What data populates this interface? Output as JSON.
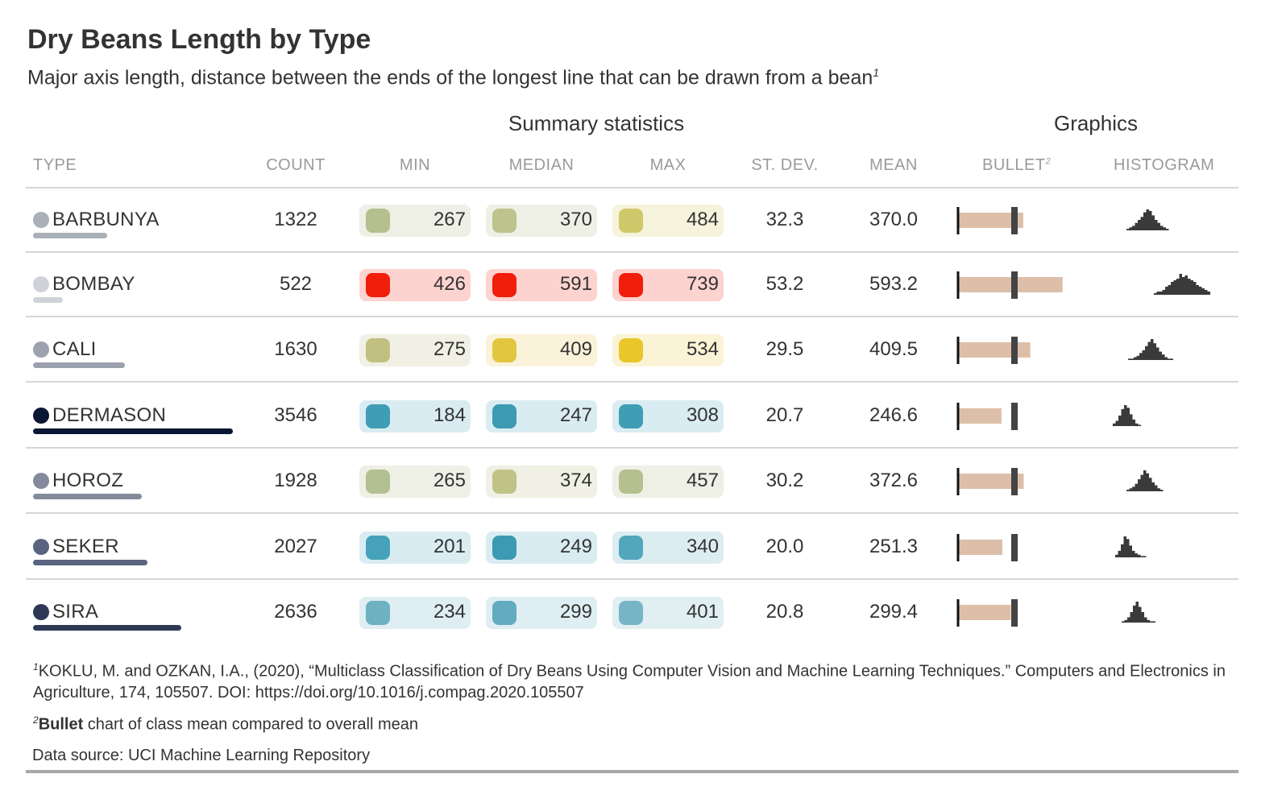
{
  "title": "Dry Beans Length by Type",
  "subtitle": "Major axis length, distance between the ends of the longest line that can be drawn from a bean",
  "subtitle_sup": "1",
  "spanners": {
    "summary": "Summary statistics",
    "graphics": "Graphics"
  },
  "columns": {
    "type": "TYPE",
    "count": "COUNT",
    "min": "MIN",
    "median": "MEDIAN",
    "max": "MAX",
    "stdev": "ST. DEV.",
    "mean": "MEAN",
    "bullet": "BULLET",
    "bullet_sup": "2",
    "histogram": "HISTOGRAM"
  },
  "footnotes": {
    "f1_sup": "1",
    "f1": "KOKLU, M. and OZKAN, I.A., (2020), “Multiclass Classification of Dry Beans Using Computer Vision and Machine Learning Techniques.” Computers and Electronics in Agriculture, 174, 105507. DOI: https://doi.org/10.1016/j.compag.2020.105507",
    "f2_sup": "2",
    "f2_bold": "Bullet",
    "f2": " chart of class mean compared to overall mean",
    "source": "Data source: UCI Machine Learning Repository"
  },
  "chart_data": {
    "type": "table",
    "overall_mean": 320.1,
    "rows": [
      {
        "type": "BARBUNYA",
        "count": 1322,
        "min": 267,
        "median": 370,
        "max": 484,
        "stdev": "32.3",
        "mean": "370.0",
        "dot_color": "#aab0b8",
        "min_color": "#b5c08f",
        "median_color": "#bcc38c",
        "max_color": "#cfc86b",
        "min_bg": "#eef0e6",
        "median_bg": "#eef0e6",
        "max_bg": "#f6f3dd"
      },
      {
        "type": "BOMBAY",
        "count": 522,
        "min": 426,
        "median": 591,
        "max": 739,
        "stdev": "53.2",
        "mean": "593.2",
        "dot_color": "#cfd3d9",
        "min_color": "#f01e0a",
        "median_color": "#f01e0a",
        "max_color": "#f01e0a",
        "min_bg": "#fcd3cf",
        "median_bg": "#fcd3cf",
        "max_bg": "#fcd3cf"
      },
      {
        "type": "CALI",
        "count": 1630,
        "min": 275,
        "median": 409,
        "max": 534,
        "stdev": "29.5",
        "mean": "409.5",
        "dot_color": "#9ba1ae",
        "min_color": "#c2c081",
        "median_color": "#e2c63f",
        "max_color": "#e9c62a",
        "min_bg": "#f1f0e4",
        "median_bg": "#faf3da",
        "max_bg": "#fbf3d6"
      },
      {
        "type": "DERMASON",
        "count": 3546,
        "min": 184,
        "median": 247,
        "max": 308,
        "stdev": "20.7",
        "mean": "246.6",
        "dot_color": "#0a1633",
        "min_color": "#3f9db5",
        "median_color": "#3c9ab2",
        "max_color": "#3f9db5",
        "min_bg": "#d9ecf1",
        "median_bg": "#d9ecf1",
        "max_bg": "#d9ecf1"
      },
      {
        "type": "HOROZ",
        "count": 1928,
        "min": 265,
        "median": 374,
        "max": 457,
        "stdev": "30.2",
        "mean": "372.6",
        "dot_color": "#838a9b",
        "min_color": "#b3c091",
        "median_color": "#c0c386",
        "max_color": "#b5c08f",
        "min_bg": "#eef0e6",
        "median_bg": "#f0f0e4",
        "max_bg": "#eef0e6"
      },
      {
        "type": "SEKER",
        "count": 2027,
        "min": 201,
        "median": 249,
        "max": 340,
        "stdev": "20.0",
        "mean": "251.3",
        "dot_color": "#5a6480",
        "min_color": "#46a2ba",
        "median_color": "#3c9ab2",
        "max_color": "#52a7bd",
        "min_bg": "#d9ecf1",
        "median_bg": "#d9ecf1",
        "max_bg": "#dcedf1"
      },
      {
        "type": "SIRA",
        "count": 2636,
        "min": 234,
        "median": 299,
        "max": 401,
        "stdev": "20.8",
        "mean": "299.4",
        "dot_color": "#2e3a55",
        "min_color": "#6db1c3",
        "median_color": "#63abbe",
        "max_color": "#76b5c6",
        "min_bg": "#dfeef2",
        "median_bg": "#dfeef2",
        "max_bg": "#e1eff2"
      }
    ],
    "histograms": [
      [
        1,
        2,
        3,
        5,
        7,
        9,
        12,
        14,
        13,
        10,
        7,
        5,
        3,
        2,
        1
      ],
      [
        1,
        2,
        2,
        3,
        5,
        6,
        8,
        9,
        10,
        13,
        11,
        12,
        10,
        9,
        8,
        6,
        5,
        4,
        3,
        2
      ],
      [
        1,
        1,
        2,
        3,
        5,
        7,
        10,
        13,
        15,
        12,
        9,
        6,
        4,
        2,
        1,
        1
      ],
      [
        2,
        4,
        8,
        13,
        16,
        14,
        9,
        5,
        2,
        1
      ],
      [
        1,
        2,
        3,
        5,
        8,
        11,
        14,
        12,
        9,
        6,
        4,
        2,
        1
      ],
      [
        2,
        5,
        10,
        16,
        14,
        9,
        5,
        3,
        2,
        1,
        1
      ],
      [
        1,
        2,
        4,
        8,
        13,
        16,
        12,
        8,
        4,
        2,
        1,
        1
      ]
    ]
  }
}
